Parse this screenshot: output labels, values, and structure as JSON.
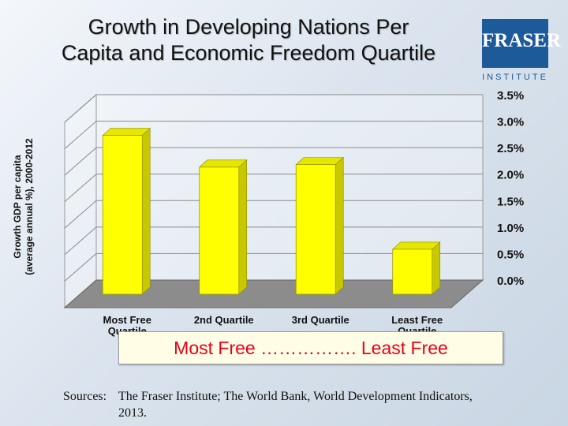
{
  "title_line1": "Growth in Developing Nations Per",
  "title_line2": "Capita and Economic Freedom Quartile",
  "logo": {
    "word": "FRASER",
    "sub": "INSTITUTE",
    "color": "#1c5a9a"
  },
  "freedom_scale": "Most Free ……………. Least Free",
  "sources": {
    "label": "Sources:",
    "line1": "The Fraser Institute; The World Bank, World Development Indicators,",
    "line2": "2013."
  },
  "chart_data": {
    "type": "bar",
    "style": "3d",
    "categories": [
      "Most Free Quartile",
      "2nd Quartile",
      "3rd Quartile",
      "Least Free Quartile"
    ],
    "category_labels": [
      [
        "Most Free",
        "Quartile"
      ],
      [
        "2nd Quartile"
      ],
      [
        "3rd Quartile"
      ],
      [
        "Least Free",
        "Quartile"
      ]
    ],
    "values": [
      3.0,
      2.4,
      2.45,
      0.85
    ],
    "ylabel_line1": "Growth GDP per capita",
    "ylabel_line2": "(average annual %), 2000-2012",
    "ylim": [
      0,
      3.5
    ],
    "yticks": [
      "0.0%",
      "0.5%",
      "1.0%",
      "1.5%",
      "2.0%",
      "2.5%",
      "3.0%",
      "3.5%"
    ],
    "grid": true,
    "bar_color": "#ffff00",
    "floor_color": "#8c8c8c"
  }
}
